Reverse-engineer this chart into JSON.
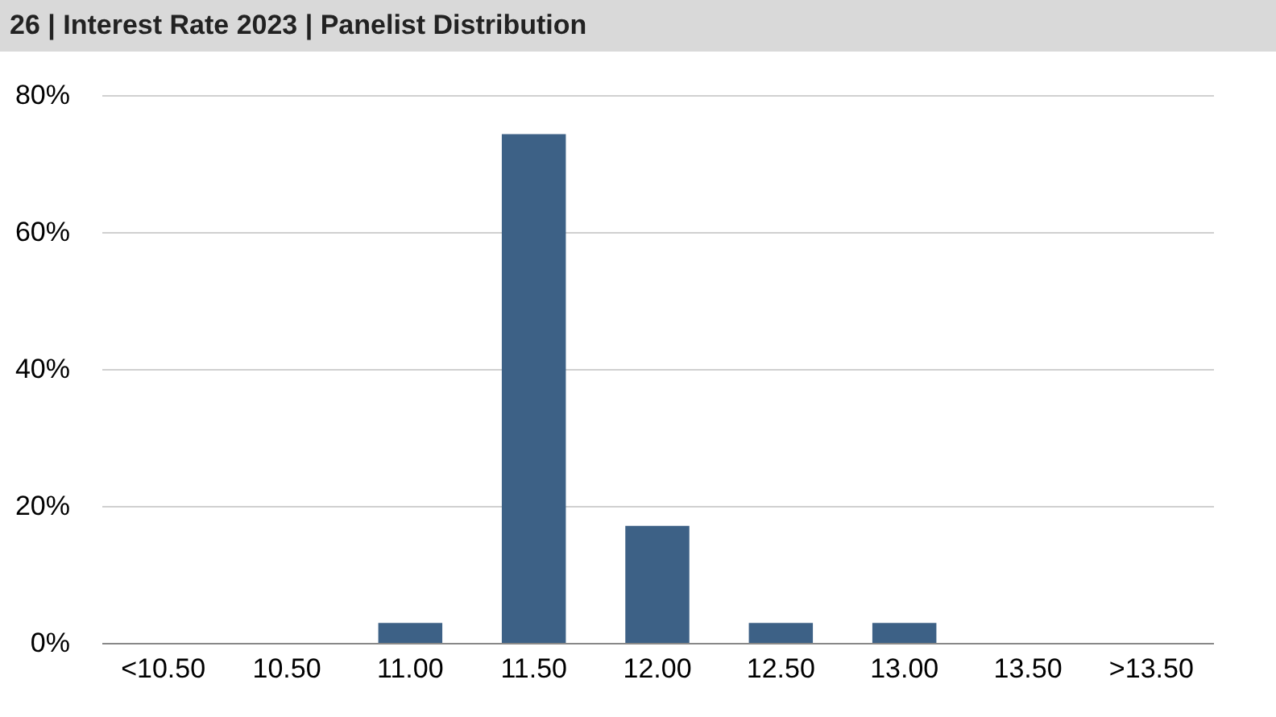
{
  "chart_data": {
    "type": "bar",
    "title": "26 | Interest Rate 2023 | Panelist Distribution",
    "categories": [
      "<10.50",
      "10.50",
      "11.00",
      "11.50",
      "12.00",
      "12.50",
      "13.00",
      "13.50",
      ">13.50"
    ],
    "values": [
      0,
      0,
      2.9,
      74.3,
      17.1,
      2.9,
      2.9,
      0,
      0
    ],
    "color": "#3d6186",
    "ylim": [
      0,
      80
    ],
    "yticks": [
      {
        "value": 0,
        "label": "0%"
      },
      {
        "value": 20,
        "label": "20%"
      },
      {
        "value": 40,
        "label": "40%"
      },
      {
        "value": 60,
        "label": "60%"
      },
      {
        "value": 80,
        "label": "80%"
      }
    ],
    "grid": "y"
  }
}
